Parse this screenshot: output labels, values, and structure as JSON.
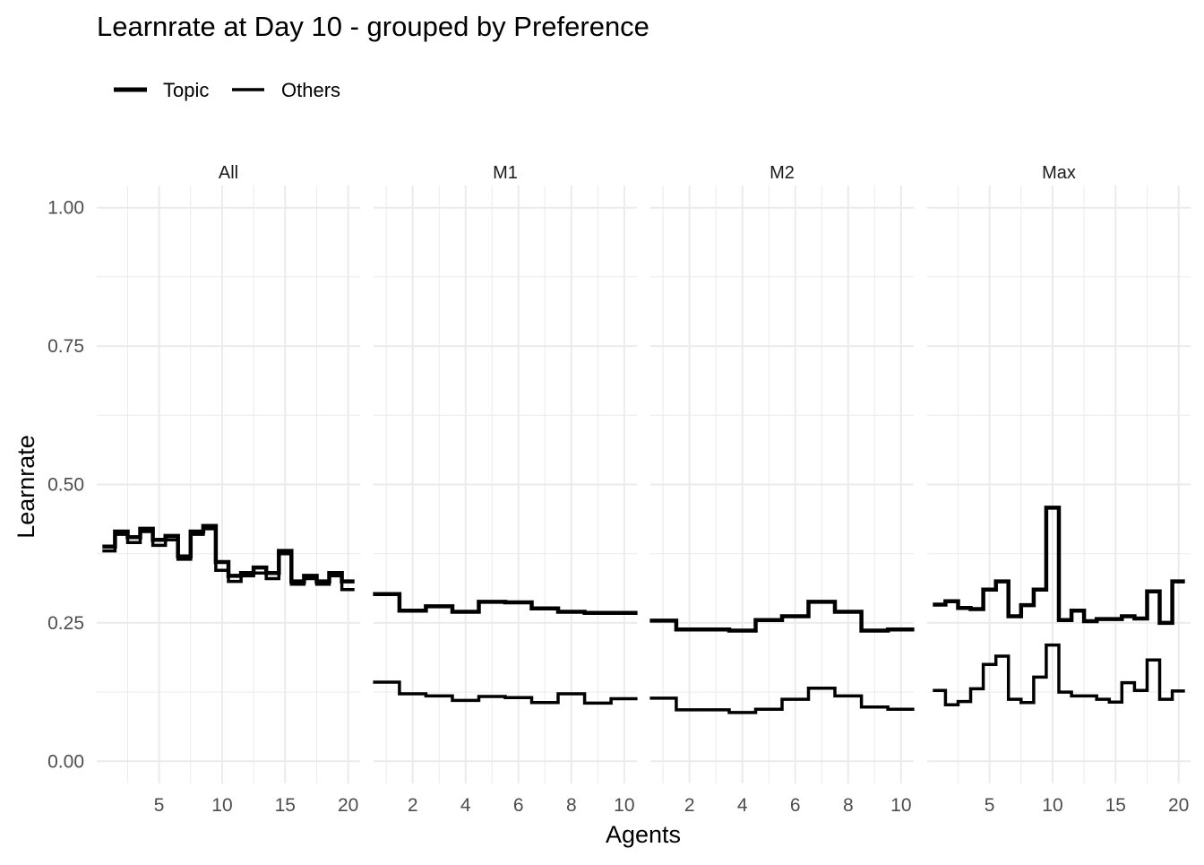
{
  "chart_data": {
    "type": "line",
    "step": true,
    "title": "Learnrate at Day 10 - grouped by Preference",
    "xlabel": "Agents",
    "ylabel": "Learnrate",
    "legend": {
      "placement": "top-left",
      "entries": [
        {
          "name": "Topic",
          "color": "#000000",
          "thickness": "thick"
        },
        {
          "name": "Others",
          "color": "#000000",
          "thickness": "normal"
        }
      ]
    },
    "ylim": [
      -0.04,
      1.04
    ],
    "yticks": [
      0,
      0.25,
      0.5,
      0.75,
      1
    ],
    "ytick_labels": [
      "0.00",
      "0.25",
      "0.50",
      "0.75",
      "1.00"
    ],
    "grid": true,
    "colors": {
      "background": "#ffffff",
      "grid": "#ebebeb",
      "line": "#000000"
    },
    "facets": [
      {
        "name": "All",
        "xlim": [
          0.05,
          20.95
        ],
        "xticks": [
          5,
          10,
          15,
          20
        ],
        "x": [
          1,
          2,
          3,
          4,
          5,
          6,
          7,
          8,
          9,
          10,
          11,
          12,
          13,
          14,
          15,
          16,
          17,
          18,
          19,
          20
        ],
        "series": [
          {
            "name": "Topic",
            "values": [
              0.388,
              0.415,
              0.405,
              0.42,
              0.4,
              0.407,
              0.37,
              0.415,
              0.425,
              0.36,
              0.335,
              0.34,
              0.35,
              0.34,
              0.38,
              0.325,
              0.335,
              0.325,
              0.34,
              0.325
            ]
          },
          {
            "name": "Others",
            "values": [
              0.38,
              0.41,
              0.395,
              0.415,
              0.39,
              0.4,
              0.365,
              0.41,
              0.42,
              0.345,
              0.325,
              0.335,
              0.34,
              0.33,
              0.375,
              0.32,
              0.33,
              0.32,
              0.335,
              0.31
            ]
          }
        ]
      },
      {
        "name": "M1",
        "xlim": [
          0.52,
          10.48
        ],
        "xticks": [
          2,
          4,
          6,
          8,
          10
        ],
        "x": [
          1,
          2,
          3,
          4,
          5,
          6,
          7,
          8,
          9,
          10
        ],
        "series": [
          {
            "name": "Topic",
            "values": [
              0.302,
              0.272,
              0.28,
              0.27,
              0.288,
              0.287,
              0.276,
              0.27,
              0.268,
              0.268
            ]
          },
          {
            "name": "Others",
            "values": [
              0.143,
              0.122,
              0.118,
              0.11,
              0.117,
              0.115,
              0.106,
              0.122,
              0.105,
              0.113
            ]
          }
        ]
      },
      {
        "name": "M2",
        "xlim": [
          0.52,
          10.48
        ],
        "xticks": [
          2,
          4,
          6,
          8,
          10
        ],
        "x": [
          1,
          2,
          3,
          4,
          5,
          6,
          7,
          8,
          9,
          10
        ],
        "series": [
          {
            "name": "Topic",
            "values": [
              0.254,
              0.238,
              0.238,
              0.236,
              0.255,
              0.262,
              0.288,
              0.27,
              0.236,
              0.238
            ]
          },
          {
            "name": "Others",
            "values": [
              0.114,
              0.093,
              0.093,
              0.088,
              0.094,
              0.112,
              0.132,
              0.118,
              0.098,
              0.094
            ]
          }
        ]
      },
      {
        "name": "Max",
        "xlim": [
          0.05,
          20.95
        ],
        "xticks": [
          5,
          10,
          15,
          20
        ],
        "x": [
          1,
          2,
          3,
          4,
          5,
          6,
          7,
          8,
          9,
          10,
          11,
          12,
          13,
          14,
          15,
          16,
          17,
          18,
          19,
          20
        ],
        "series": [
          {
            "name": "Topic",
            "values": [
              0.283,
              0.289,
              0.277,
              0.275,
              0.31,
              0.325,
              0.262,
              0.282,
              0.31,
              0.458,
              0.255,
              0.272,
              0.253,
              0.257,
              0.257,
              0.262,
              0.258,
              0.307,
              0.25,
              0.325
            ]
          },
          {
            "name": "Others",
            "values": [
              0.128,
              0.102,
              0.108,
              0.131,
              0.175,
              0.19,
              0.112,
              0.106,
              0.152,
              0.21,
              0.125,
              0.118,
              0.118,
              0.112,
              0.107,
              0.142,
              0.128,
              0.183,
              0.112,
              0.127
            ]
          }
        ]
      }
    ]
  }
}
